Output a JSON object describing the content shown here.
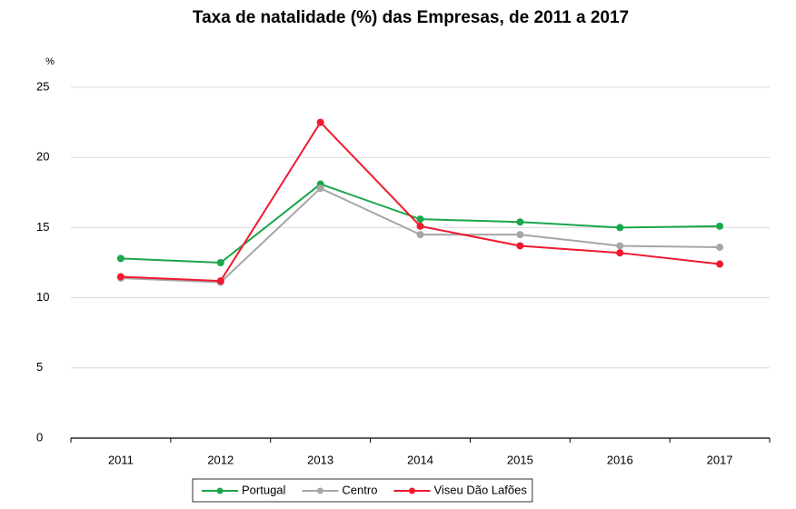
{
  "chart_data": {
    "type": "line",
    "title": "Taxa de natalidade (%) das Empresas, de 2011 a 2017",
    "y_label": "%",
    "categories": [
      "2011",
      "2012",
      "2013",
      "2014",
      "2015",
      "2016",
      "2017"
    ],
    "series": [
      {
        "name": "Portugal",
        "color": "#1aa64a",
        "values": [
          12.8,
          12.5,
          18.1,
          15.6,
          15.4,
          15.0,
          15.1
        ]
      },
      {
        "name": "Centro",
        "color": "#a6a6a6",
        "values": [
          11.4,
          11.1,
          17.8,
          14.5,
          14.5,
          13.7,
          13.6
        ]
      },
      {
        "name": "Viseu Dão Lafões",
        "color": "#f0192f",
        "values": [
          11.5,
          11.2,
          22.5,
          15.1,
          13.7,
          13.2,
          12.4
        ]
      }
    ],
    "ylim": [
      0,
      25
    ],
    "yticks": [
      0,
      5,
      10,
      15,
      20,
      25
    ],
    "grid": true,
    "legend": "bottom"
  }
}
